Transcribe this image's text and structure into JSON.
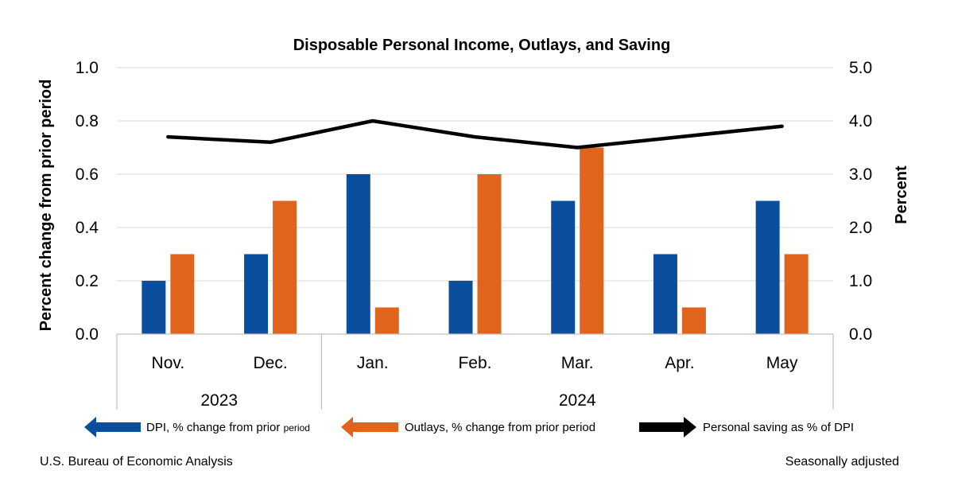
{
  "chart_data": {
    "type": "bar",
    "title": "Disposable Personal Income, Outlays, and Saving",
    "ylabel_left": "Percent change from prior period",
    "ylabel_right": "Percent",
    "ylim_left": [
      0,
      1.0
    ],
    "ylim_right": [
      0,
      5.0
    ],
    "yticks_left": [
      "0.0",
      "0.2",
      "0.4",
      "0.6",
      "0.8",
      "1.0"
    ],
    "yticks_right": [
      "0.0",
      "1.0",
      "2.0",
      "3.0",
      "4.0",
      "5.0"
    ],
    "categories": [
      "Nov.",
      "Dec.",
      "Jan.",
      "Feb.",
      "Mar.",
      "Apr.",
      "May"
    ],
    "year_groups": [
      {
        "label": "2023",
        "count": 2
      },
      {
        "label": "2024",
        "count": 5
      }
    ],
    "series": [
      {
        "name": "DPI, % change from prior",
        "name_suffix": "period",
        "type": "bar",
        "axis": "left",
        "color": "#0B4F9C",
        "values": [
          0.2,
          0.3,
          0.6,
          0.2,
          0.5,
          0.3,
          0.5
        ]
      },
      {
        "name": "Outlays, % change from prior period",
        "type": "bar",
        "axis": "left",
        "color": "#E0641C",
        "values": [
          0.3,
          0.5,
          0.1,
          0.6,
          0.7,
          0.1,
          0.3
        ]
      },
      {
        "name": "Personal saving as % of DPI",
        "type": "line",
        "axis": "right",
        "color": "#000000",
        "values": [
          3.7,
          3.6,
          4.0,
          3.7,
          3.5,
          3.7,
          3.9
        ]
      }
    ]
  },
  "footer": {
    "source": "U.S. Bureau of Economic Analysis",
    "note": "Seasonally adjusted"
  }
}
